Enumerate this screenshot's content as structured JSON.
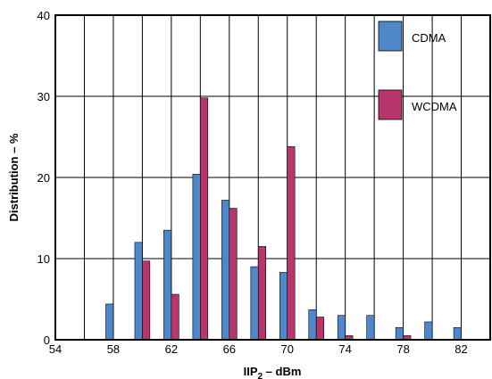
{
  "chart_data": {
    "type": "bar",
    "xlabel": "IIP",
    "xlabel_subscript": "2",
    "xlabel_suffix": " – dBm",
    "ylabel": "Distribution – %",
    "xlim": [
      54,
      84
    ],
    "ylim": [
      0,
      40
    ],
    "x_ticks": [
      54,
      58,
      62,
      66,
      70,
      74,
      78,
      82
    ],
    "y_ticks": [
      0,
      10,
      20,
      30,
      40
    ],
    "grid": true,
    "legend_position": "top-right",
    "x": [
      58,
      60,
      62,
      64,
      66,
      68,
      70,
      72,
      74,
      76,
      78,
      80,
      82
    ],
    "series": [
      {
        "name": "CDMA",
        "color": "#4f88c8",
        "values": [
          4.4,
          12.0,
          13.5,
          20.4,
          17.2,
          9.0,
          8.3,
          3.7,
          3.0,
          3.0,
          1.5,
          2.2,
          1.5
        ]
      },
      {
        "name": "WCDMA",
        "color": "#b8376b",
        "values": [
          0,
          9.7,
          5.6,
          29.8,
          16.2,
          11.5,
          23.8,
          2.8,
          0.5,
          0,
          0.5,
          0,
          0
        ]
      }
    ]
  }
}
